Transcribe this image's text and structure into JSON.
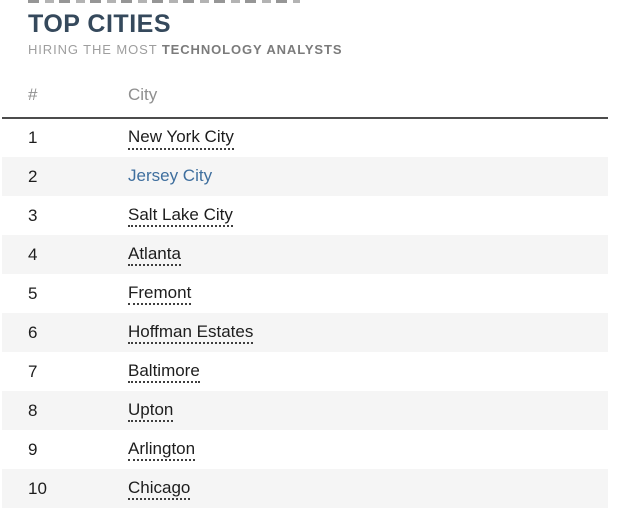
{
  "header": {
    "title": "TOP CITIES",
    "subtitle": {
      "prefix": "HIRING THE MOST ",
      "emphasis": "TECHNOLOGY ANALYSTS"
    }
  },
  "table": {
    "columns": [
      {
        "label": "#"
      },
      {
        "label": "City"
      }
    ],
    "rows": [
      {
        "rank": "1",
        "city": "New York City",
        "highlighted": false
      },
      {
        "rank": "2",
        "city": "Jersey City",
        "highlighted": true
      },
      {
        "rank": "3",
        "city": "Salt Lake City",
        "highlighted": false
      },
      {
        "rank": "4",
        "city": "Atlanta",
        "highlighted": false
      },
      {
        "rank": "5",
        "city": "Fremont",
        "highlighted": false
      },
      {
        "rank": "6",
        "city": "Hoffman Estates",
        "highlighted": false
      },
      {
        "rank": "7",
        "city": "Baltimore",
        "highlighted": false
      },
      {
        "rank": "8",
        "city": "Upton",
        "highlighted": false
      },
      {
        "rank": "9",
        "city": "Arlington",
        "highlighted": false
      },
      {
        "rank": "10",
        "city": "Chicago",
        "highlighted": false
      }
    ]
  },
  "colors": {
    "title": "#35495c",
    "highlighted_link": "#3f6f9e",
    "row_stripe": "#f5f5f5",
    "header_rule": "#4c4c4c",
    "body_text": "#1d1d1d",
    "muted_text": "#8f8f8f",
    "subtitle_prefix": "#9e9e9e",
    "subtitle_emphasis": "#7b7b7b"
  }
}
